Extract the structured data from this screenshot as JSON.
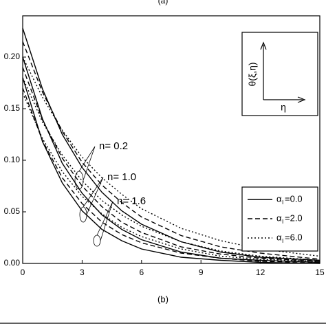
{
  "chart_data": {
    "type": "line",
    "top_caption": "(a)",
    "caption": "(b)",
    "inset_y_label": "θ(ξ,η)",
    "inset_x_label": "η",
    "x": [
      0,
      1,
      2,
      3,
      4,
      5,
      6,
      8,
      10,
      12,
      15
    ],
    "xlim": [
      0,
      15
    ],
    "xticks": [
      0,
      3,
      6,
      9,
      12,
      15
    ],
    "ylim": [
      0,
      0.24
    ],
    "yticks": [
      {
        "value": 0,
        "label": "0.00"
      },
      {
        "value": 0.05,
        "label": "0.05"
      },
      {
        "value": 0.1,
        "label": "0.10"
      },
      {
        "value": 0.15,
        "label": "0.15"
      },
      {
        "value": 0.2,
        "label": "0.20"
      }
    ],
    "legend": [
      {
        "symbol": "α",
        "sub": "I",
        "text": "=0.0",
        "dash": "solid"
      },
      {
        "symbol": "α",
        "sub": "I",
        "text": "=2.0",
        "dash": "dashed"
      },
      {
        "symbol": "α",
        "sub": "I",
        "text": "=6.0",
        "dash": "dotted"
      }
    ],
    "annotations": [
      "n= 0.2",
      "n= 1.0",
      "n= 1.6"
    ],
    "series": [
      {
        "dash": "solid",
        "color": "#000",
        "values": [
          0.228,
          0.169,
          0.125,
          0.093,
          0.069,
          0.051,
          0.038,
          0.021,
          0.011,
          0.006,
          0.003
        ]
      },
      {
        "dash": "dashed",
        "color": "#000",
        "values": [
          0.215,
          0.166,
          0.128,
          0.098,
          0.076,
          0.059,
          0.045,
          0.027,
          0.016,
          0.01,
          0.004
        ]
      },
      {
        "dash": "dotted",
        "color": "#000",
        "values": [
          0.2,
          0.161,
          0.129,
          0.103,
          0.083,
          0.067,
          0.053,
          0.034,
          0.022,
          0.014,
          0.007
        ]
      },
      {
        "dash": "solid",
        "color": "#000",
        "values": [
          0.2,
          0.14,
          0.097,
          0.068,
          0.047,
          0.033,
          0.023,
          0.011,
          0.005,
          0.003,
          0.001
        ]
      },
      {
        "dash": "dashed",
        "color": "#000",
        "values": [
          0.19,
          0.139,
          0.102,
          0.075,
          0.055,
          0.04,
          0.03,
          0.016,
          0.009,
          0.005,
          0.002
        ]
      },
      {
        "dash": "dotted",
        "color": "#000",
        "values": [
          0.18,
          0.137,
          0.105,
          0.08,
          0.061,
          0.047,
          0.036,
          0.021,
          0.012,
          0.007,
          0.003
        ]
      },
      {
        "dash": "solid",
        "color": "#000",
        "values": [
          0.18,
          0.118,
          0.078,
          0.051,
          0.033,
          0.022,
          0.014,
          0.006,
          0.003,
          0.001,
          0.0
        ]
      },
      {
        "dash": "dashed",
        "color": "#000",
        "values": [
          0.17,
          0.119,
          0.083,
          0.058,
          0.04,
          0.028,
          0.02,
          0.01,
          0.005,
          0.002,
          0.001
        ]
      },
      {
        "dash": "dotted",
        "color": "#000",
        "values": [
          0.165,
          0.121,
          0.089,
          0.065,
          0.048,
          0.035,
          0.026,
          0.014,
          0.007,
          0.004,
          0.002
        ]
      }
    ]
  }
}
